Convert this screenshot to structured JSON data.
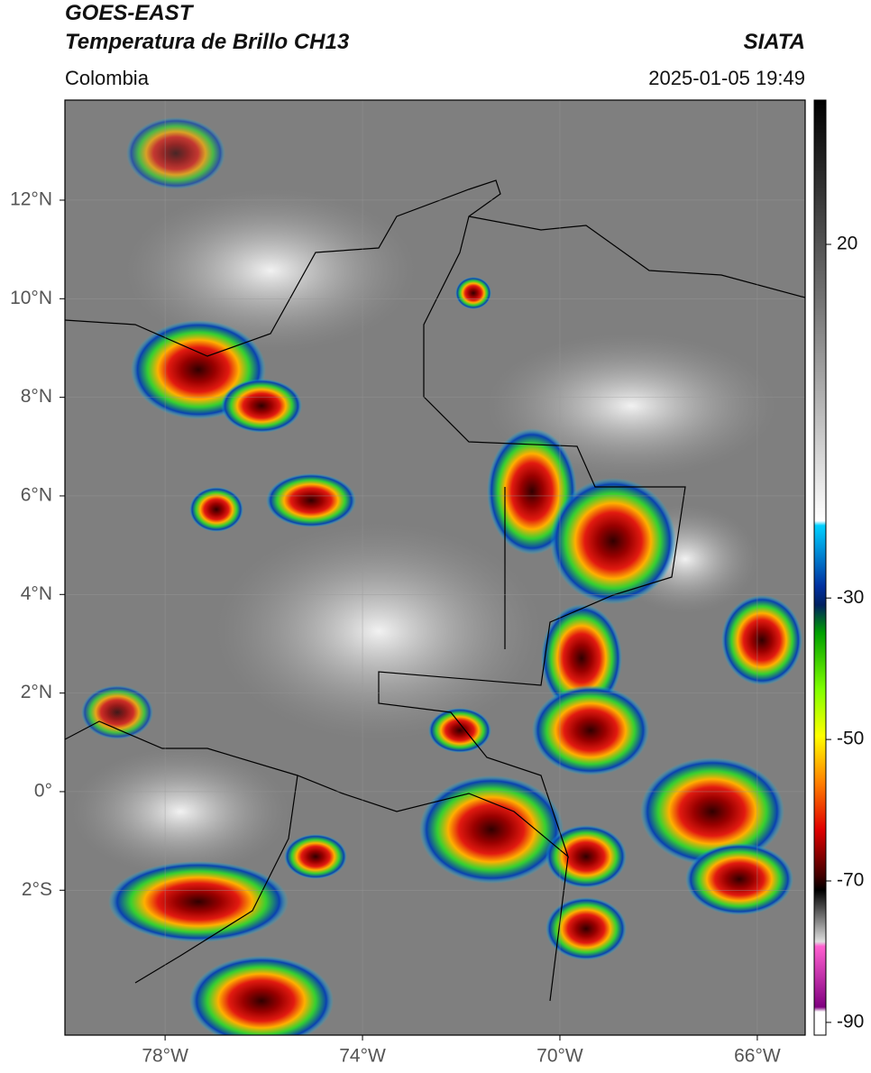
{
  "header": {
    "title": "GOES-EAST",
    "subtitle": "Temperatura de Brillo CH13",
    "source": "SIATA",
    "region": "Colombia",
    "timestamp": "2025-01-05 19:49"
  },
  "map": {
    "lat_range": [
      -4.94,
      14.03
    ],
    "lon_range": [
      -80.03,
      -65.03
    ],
    "grid": true,
    "lat_ticks": [
      {
        "value": 12,
        "label": "12°N"
      },
      {
        "value": 10,
        "label": "10°N"
      },
      {
        "value": 8,
        "label": "8°N"
      },
      {
        "value": 6,
        "label": "6°N"
      },
      {
        "value": 4,
        "label": "4°N"
      },
      {
        "value": 2,
        "label": "2°N"
      },
      {
        "value": 0,
        "label": "0°"
      },
      {
        "value": -2,
        "label": "2°S"
      }
    ],
    "lon_ticks": [
      {
        "value": -78,
        "label": "78°W"
      },
      {
        "value": -74,
        "label": "74°W"
      },
      {
        "value": -70,
        "label": "70°W"
      },
      {
        "value": -66,
        "label": "66°W"
      }
    ]
  },
  "colorbar": {
    "range": [
      -91.8,
      40.4
    ],
    "ticks": [
      20,
      -30,
      -50,
      -70,
      -90
    ]
  }
}
